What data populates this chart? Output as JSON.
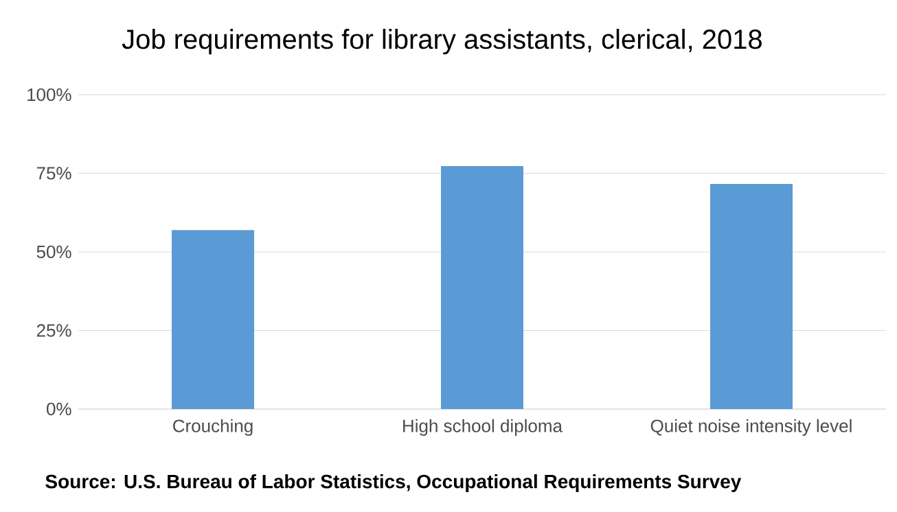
{
  "chart_data": {
    "type": "bar",
    "title": "Job requirements for library assistants, clerical, 2018",
    "categories": [
      "Crouching",
      "High school diploma",
      "Quiet noise intensity level"
    ],
    "values": [
      56.9,
      77.3,
      71.6
    ],
    "color": "#5b9bd5",
    "ylim": [
      0,
      100
    ],
    "yticks": [
      {
        "value": 0,
        "label": "0%"
      },
      {
        "value": 25,
        "label": "25%"
      },
      {
        "value": 50,
        "label": "50%"
      },
      {
        "value": 75,
        "label": "75%"
      },
      {
        "value": 100,
        "label": "100%"
      }
    ],
    "grid": "y",
    "annotations": [
      "Source: U.S. Bureau of Labor Statistics, Occupational Requirements Survey"
    ]
  }
}
